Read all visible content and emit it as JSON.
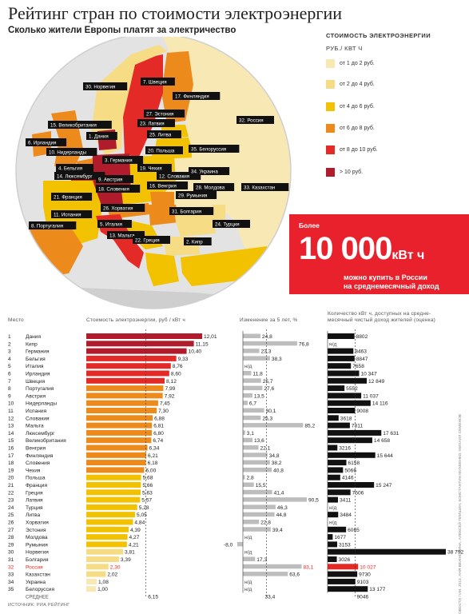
{
  "header": {
    "title": "Рейтинг стран по стоимости электроэнергии",
    "subtitle": "Сколько жители Европы платят за электричество"
  },
  "legend": {
    "title": "СТОИМОСТЬ ЭЛЕКТРОЭНЕРГИИ",
    "unit": "РУБ./ КВТ Ч",
    "items": [
      {
        "label": "от 1 до 2 руб.",
        "color": "#f7e8b4"
      },
      {
        "label": "от 2 до 4 руб.",
        "color": "#f7dc86"
      },
      {
        "label": "от 4 до 6 руб.",
        "color": "#f2c200"
      },
      {
        "label": "от 6 до 8 руб.",
        "color": "#ec8a1c"
      },
      {
        "label": "от 8 до 10 руб.",
        "color": "#e42a27"
      },
      {
        "label": "> 10 руб.",
        "color": "#b01c2c"
      }
    ]
  },
  "map_labels": [
    "30. Норвегия",
    "7. Швеция",
    "17. Финляндия",
    "32. Россия",
    "27. Эстония",
    "23. Латвия",
    "25. Литва",
    "15. Великобритания",
    "1. Дания",
    "6. Ирландия",
    "10. Нидерланды",
    "3. Германия",
    "20. Польша",
    "35. Белоруссия",
    "4. Бельгия",
    "14. Люксембург",
    "19. Чехия",
    "12. Словакия",
    "34. Украина",
    "9. Австрия",
    "18. Словения",
    "16. Венгрия",
    "28. Молдова",
    "21. Франция",
    "29. Румыния",
    "33. Казахстан",
    "11. Испания",
    "26. Хорватия",
    "31. Болгария",
    "8. Португалия",
    "5. Италия",
    "24. Турция",
    "13. Мальта",
    "22. Греция",
    "2. Кипр"
  ],
  "callout": {
    "top": "Более",
    "big": "10 000",
    "unit": "кВт ч",
    "sub1": "можно купить в России",
    "sub2": "на среднемесячный доход"
  },
  "table_headers": {
    "place": "Место",
    "cost": "Стоимость электроэнергии, руб / кВт ч",
    "change": "Изменение за 5 лет, %",
    "kwh1": "Количество кВт ч, доступных на средне-",
    "kwh2": "месячный чистый доход жителей (оценка)"
  },
  "highlight_color": "#e42a27",
  "source": "ИСТОЧНИК: РИА РЕЙТИНГ",
  "credit": "© РИАНОВОСТИ / ИН. 2013, АНЯ ВЕЖНОВИНА, АЛЕКСЕЙ ПЛИШИН, КОНСТАНТИН МИХЕЕНКО, МИХАИЛ СЕМЕНОВ",
  "chart_data": {
    "type": "table",
    "columns": [
      "Место",
      "Страна",
      "Стоимость электроэнергии, руб / кВт ч",
      "Изменение за 5 лет, %",
      "Количество кВт ч на среднемесячный чистый доход"
    ],
    "rows": [
      {
        "place": "1",
        "country": "Дания",
        "cost": 12.01,
        "cost_label": "12,01",
        "change": 24.8,
        "change_label": "24,8",
        "kwh": 8802,
        "kwh_label": "8802"
      },
      {
        "place": "2",
        "country": "Кипр",
        "cost": 11.15,
        "cost_label": "11,15",
        "change": 76.8,
        "change_label": "76,8",
        "kwh": null,
        "kwh_label": "н/д"
      },
      {
        "place": "3",
        "country": "Германия",
        "cost": 10.4,
        "cost_label": "10,40",
        "change": 23.3,
        "change_label": "23,3",
        "kwh": 8463,
        "kwh_label": "8463"
      },
      {
        "place": "4",
        "country": "Бельгия",
        "cost": 9.33,
        "cost_label": "9,33",
        "change": 38.3,
        "change_label": "38,3",
        "kwh": 8847,
        "kwh_label": "8847"
      },
      {
        "place": "5",
        "country": "Италия",
        "cost": 8.76,
        "cost_label": "8,76",
        "change": null,
        "change_label": "н/д",
        "kwh": 7658,
        "kwh_label": "7658"
      },
      {
        "place": "6",
        "country": "Ирландия",
        "cost": 8.6,
        "cost_label": "8,60",
        "change": 11.8,
        "change_label": "11,8",
        "kwh": 10347,
        "kwh_label": "10 347"
      },
      {
        "place": "7",
        "country": "Швеция",
        "cost": 8.12,
        "cost_label": "8,12",
        "change": 25.7,
        "change_label": "25,7",
        "kwh": 12849,
        "kwh_label": "12 849"
      },
      {
        "place": "8",
        "country": "Португалия",
        "cost": 7.99,
        "cost_label": "7,99",
        "change": 27.6,
        "change_label": "27,6",
        "kwh": 5552,
        "kwh_label": "5552"
      },
      {
        "place": "9",
        "country": "Австрия",
        "cost": 7.92,
        "cost_label": "7,92",
        "change": 13.5,
        "change_label": "13,5",
        "kwh": 11037,
        "kwh_label": "11 037"
      },
      {
        "place": "10",
        "country": "Нидерланды",
        "cost": 7.45,
        "cost_label": "7,45",
        "change": 6.7,
        "change_label": "6,7",
        "kwh": 14116,
        "kwh_label": "14 116"
      },
      {
        "place": "11",
        "country": "Испания",
        "cost": 7.3,
        "cost_label": "7,30",
        "change": 30.1,
        "change_label": "30,1",
        "kwh": 9008,
        "kwh_label": "9008"
      },
      {
        "place": "12",
        "country": "Словакия",
        "cost": 6.88,
        "cost_label": "6,88",
        "change": 25.3,
        "change_label": "25,3",
        "kwh": 3618,
        "kwh_label": "3618"
      },
      {
        "place": "13",
        "country": "Мальта",
        "cost": 6.81,
        "cost_label": "6,81",
        "change": 85.2,
        "change_label": "85,2",
        "kwh": 7311,
        "kwh_label": "7311"
      },
      {
        "place": "14",
        "country": "Люксембург",
        "cost": 6.8,
        "cost_label": "6,80",
        "change": 3.1,
        "change_label": "3,1",
        "kwh": 17631,
        "kwh_label": "17 631"
      },
      {
        "place": "15",
        "country": "Великобритания",
        "cost": 6.74,
        "cost_label": "6,74",
        "change": 13.6,
        "change_label": "13,6",
        "kwh": 14658,
        "kwh_label": "14 658"
      },
      {
        "place": "16",
        "country": "Венгрия",
        "cost": 6.34,
        "cost_label": "6,34",
        "change": 22.1,
        "change_label": "22,1",
        "kwh": 3216,
        "kwh_label": "3216"
      },
      {
        "place": "17",
        "country": "Финляндия",
        "cost": 6.21,
        "cost_label": "6,21",
        "change": 34.8,
        "change_label": "34,8",
        "kwh": 15644,
        "kwh_label": "15 644"
      },
      {
        "place": "18",
        "country": "Словения",
        "cost": 6.18,
        "cost_label": "6,18",
        "change": 38.2,
        "change_label": "38,2",
        "kwh": 6158,
        "kwh_label": "6158"
      },
      {
        "place": "19",
        "country": "Чехия",
        "cost": 6.0,
        "cost_label": "6,00",
        "change": 40.8,
        "change_label": "40,8",
        "kwh": 5066,
        "kwh_label": "5066"
      },
      {
        "place": "20",
        "country": "Польша",
        "cost": 5.68,
        "cost_label": "5,68",
        "change": 2.8,
        "change_label": "2,8",
        "kwh": 4146,
        "kwh_label": "4146"
      },
      {
        "place": "21",
        "country": "Франция",
        "cost": 5.66,
        "cost_label": "5,66",
        "change": 15.5,
        "change_label": "15,5",
        "kwh": 15247,
        "kwh_label": "15 247"
      },
      {
        "place": "22",
        "country": "Греция",
        "cost": 5.63,
        "cost_label": "5,63",
        "change": 41.4,
        "change_label": "41,4",
        "kwh": 7506,
        "kwh_label": "7506"
      },
      {
        "place": "23",
        "country": "Латвия",
        "cost": 5.57,
        "cost_label": "5,57",
        "change": 90.5,
        "change_label": "90,5",
        "kwh": 3411,
        "kwh_label": "3411"
      },
      {
        "place": "24",
        "country": "Турция",
        "cost": 5.28,
        "cost_label": "5,28",
        "change": 46.3,
        "change_label": "46,3",
        "kwh": null,
        "kwh_label": "н/д"
      },
      {
        "place": "25",
        "country": "Литва",
        "cost": 5.05,
        "cost_label": "5,05",
        "change": 44.8,
        "change_label": "44,8",
        "kwh": 3484,
        "kwh_label": "3484"
      },
      {
        "place": "26",
        "country": "Хорватия",
        "cost": 4.84,
        "cost_label": "4,84",
        "change": 22.8,
        "change_label": "22,8",
        "kwh": null,
        "kwh_label": "н/д"
      },
      {
        "place": "27",
        "country": "Эстония",
        "cost": 4.39,
        "cost_label": "4,39",
        "change": 39.4,
        "change_label": "39,4",
        "kwh": 6065,
        "kwh_label": "6065"
      },
      {
        "place": "28",
        "country": "Молдова",
        "cost": 4.27,
        "cost_label": "4,27",
        "change": null,
        "change_label": "н/д",
        "kwh": 1677,
        "kwh_label": "1677"
      },
      {
        "place": "29",
        "country": "Румыния",
        "cost": 4.21,
        "cost_label": "4,21",
        "change": -8.0,
        "change_label": "-8,0",
        "kwh": 3153,
        "kwh_label": "3153"
      },
      {
        "place": "30",
        "country": "Норвегия",
        "cost": 3.81,
        "cost_label": "3,81",
        "change": null,
        "change_label": "н/д",
        "kwh": 38792,
        "kwh_label": "38 792"
      },
      {
        "place": "31",
        "country": "Болгария",
        "cost": 3.39,
        "cost_label": "3,39",
        "change": 17.3,
        "change_label": "17,3",
        "kwh": 3026,
        "kwh_label": "3026"
      },
      {
        "place": "32",
        "country": "Россия",
        "cost": 2.3,
        "cost_label": "2,30",
        "change": 83.1,
        "change_label": "83,1",
        "kwh": 10027,
        "kwh_label": "10 027",
        "highlight": true
      },
      {
        "place": "33",
        "country": "Казахстан",
        "cost": 2.02,
        "cost_label": "2,02",
        "change": 63.6,
        "change_label": "63,6",
        "kwh": 9730,
        "kwh_label": "9730"
      },
      {
        "place": "34",
        "country": "Украина",
        "cost": 1.08,
        "cost_label": "1,08",
        "change": null,
        "change_label": "н/д",
        "kwh": 9103,
        "kwh_label": "9103"
      },
      {
        "place": "35",
        "country": "Белоруссия",
        "cost": 1.0,
        "cost_label": "1,00",
        "change": null,
        "change_label": "н/д",
        "kwh": 13177,
        "kwh_label": "13 177"
      }
    ],
    "average": {
      "label": "СРЕДНЕЕ",
      "cost": 6.15,
      "cost_label": "6,15",
      "change": 33.4,
      "change_label": "33,4",
      "kwh": 9046,
      "kwh_label": "9046"
    }
  }
}
